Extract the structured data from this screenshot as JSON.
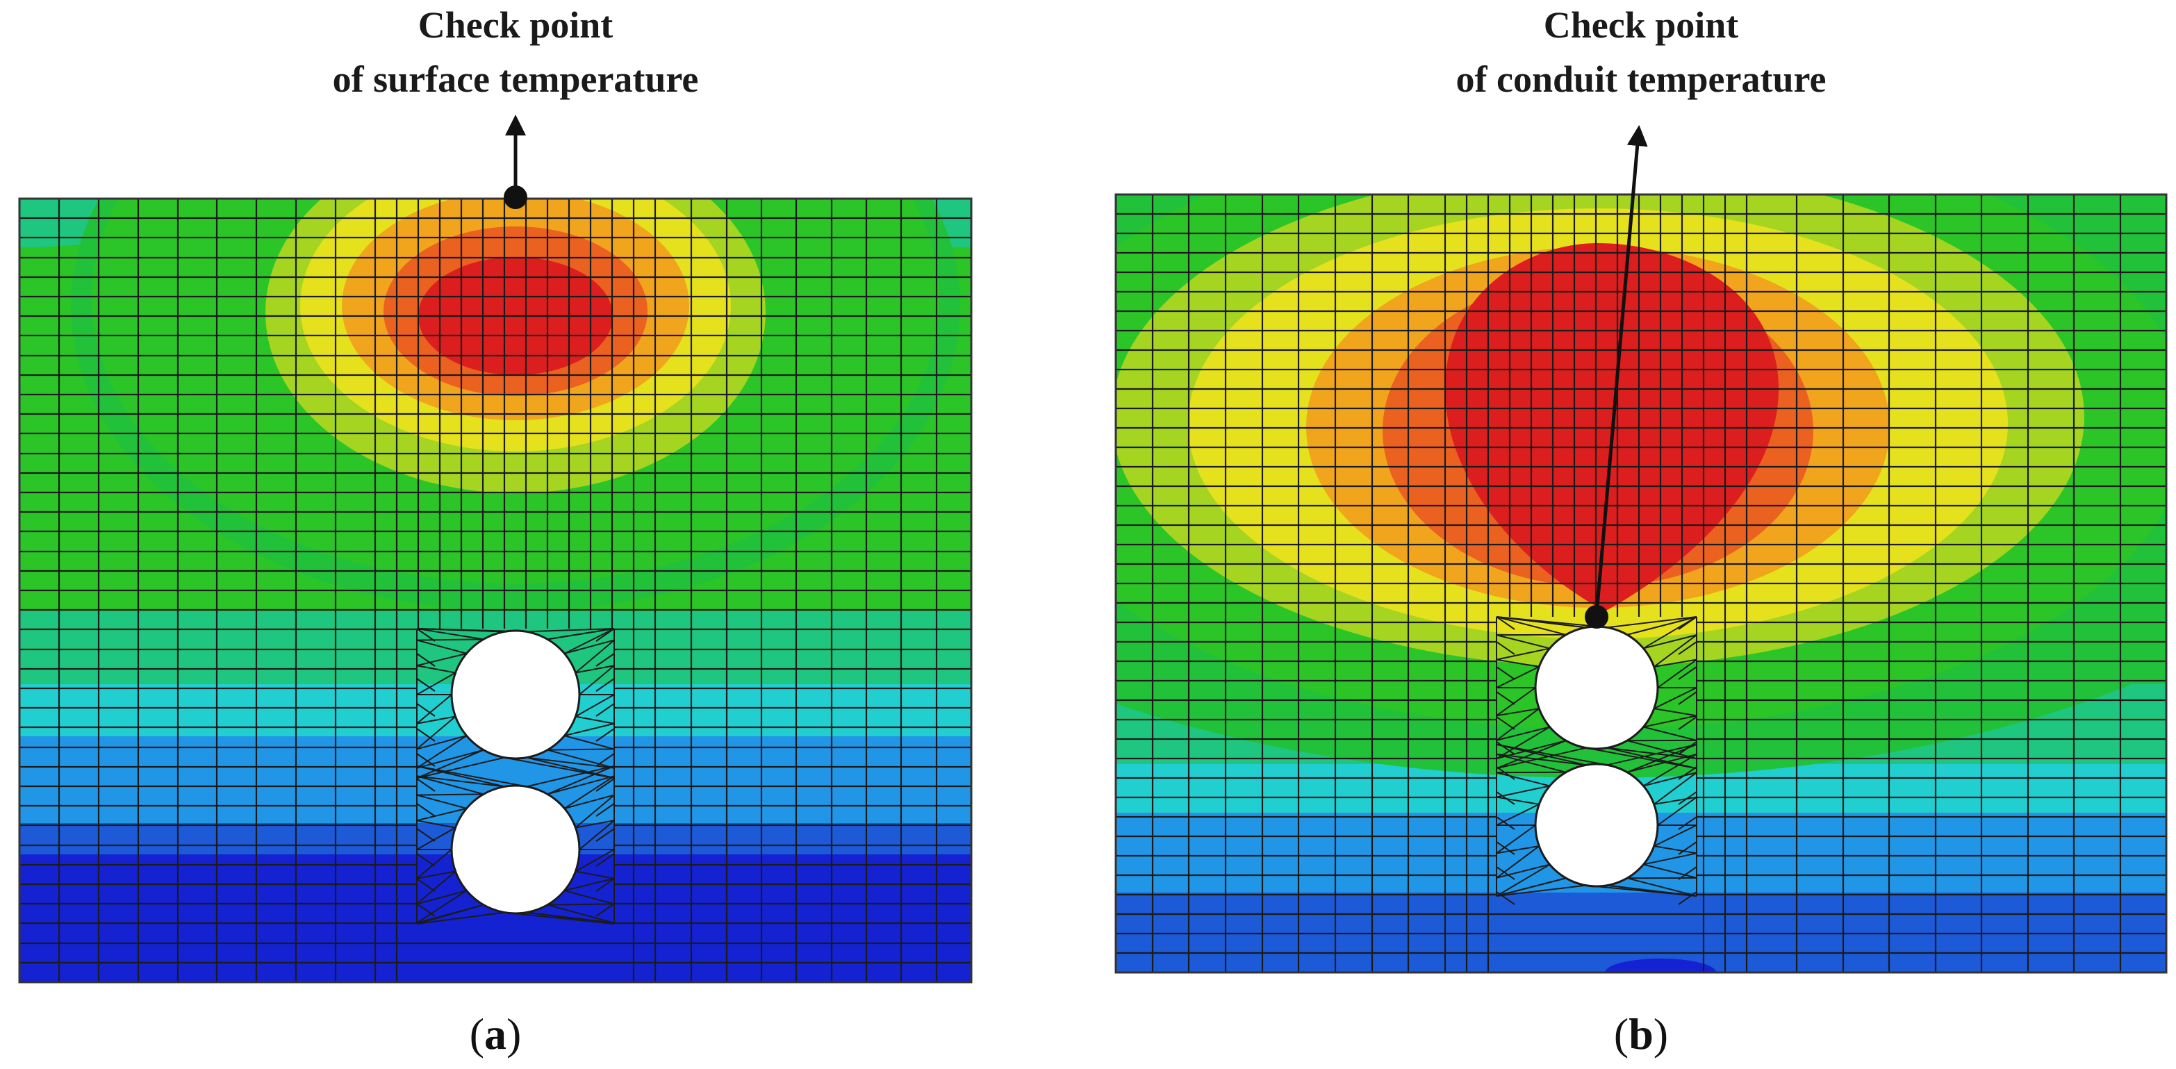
{
  "panels": [
    {
      "id": "a",
      "label": "a",
      "annotation": {
        "line1": "Check point",
        "line2": "of surface temperature"
      },
      "palette": [
        "#1522d2",
        "#1d5ad8",
        "#2196e6",
        "#22cfd0",
        "#1fc67f",
        "#22c13a",
        "#2bc528",
        "#a5d521",
        "#e6e11d",
        "#f1a51d",
        "#ea6120",
        "#dd1e1e"
      ]
    },
    {
      "id": "b",
      "label": "b",
      "annotation": {
        "line1": "Check point",
        "line2": "of conduit temperature"
      },
      "palette": [
        "#1522d2",
        "#1d5ad8",
        "#2196e6",
        "#22cfd0",
        "#1fc67f",
        "#22c13a",
        "#2bc528",
        "#a5d521",
        "#e6e11d",
        "#f1a51d",
        "#ea6120",
        "#dd1e1e"
      ]
    }
  ]
}
